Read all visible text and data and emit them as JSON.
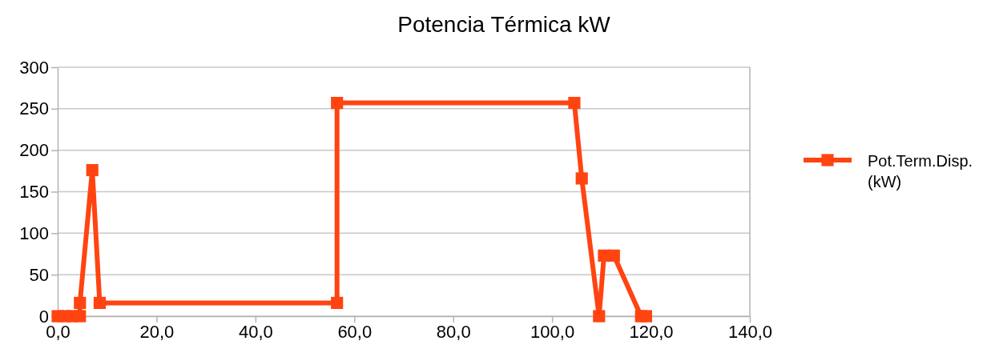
{
  "chart_data": {
    "type": "line",
    "title": "Potencia Térmica kW",
    "series": [
      {
        "name": "Pot.Term.Disp. (kW)",
        "color": "#ff4411",
        "x": [
          0,
          1.5,
          3,
          4.5,
          4.5,
          7,
          8.5,
          56.5,
          56.5,
          104.5,
          106,
          109.5,
          110.5,
          112.5,
          118,
          119
        ],
        "values": [
          0,
          0,
          0,
          0,
          16,
          176,
          16,
          16,
          257,
          257,
          166,
          0,
          73,
          73,
          0,
          0
        ]
      }
    ],
    "xlim": [
      0,
      140
    ],
    "xticks": [
      {
        "value": 0,
        "label": "0,0"
      },
      {
        "value": 20,
        "label": "20,0"
      },
      {
        "value": 40,
        "label": "40,0"
      },
      {
        "value": 60,
        "label": "60,0"
      },
      {
        "value": 80,
        "label": "80,0"
      },
      {
        "value": 100,
        "label": "100,0"
      },
      {
        "value": 120,
        "label": "120,0"
      },
      {
        "value": 140,
        "label": "140,0"
      }
    ],
    "ylim": [
      0,
      300
    ],
    "yticks": [
      0,
      50,
      100,
      150,
      200,
      250,
      300
    ],
    "grid": "y",
    "legend": "right",
    "marker": "square",
    "line_style": "solid"
  }
}
